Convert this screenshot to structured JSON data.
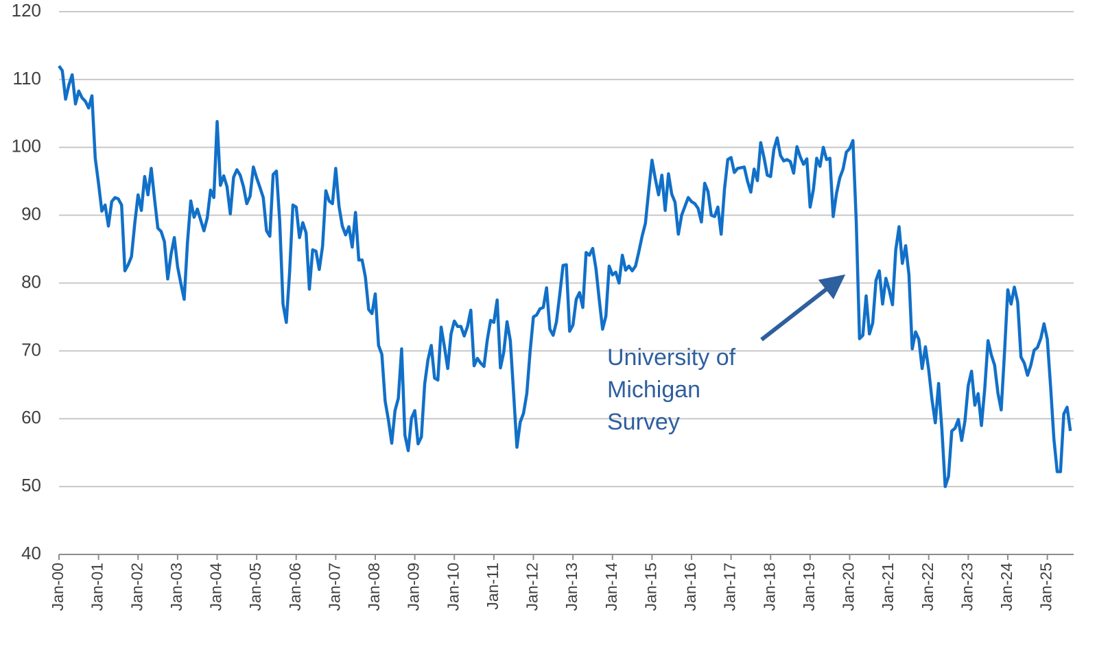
{
  "chart_data": {
    "type": "line",
    "color": "#1170c8",
    "grid": true,
    "ylim": [
      40,
      120
    ],
    "yticks": [
      40,
      50,
      60,
      70,
      80,
      90,
      100,
      110,
      120
    ],
    "annotations": [
      {
        "lines": [
          "University of",
          "Michigan",
          "Survey"
        ]
      }
    ],
    "categories": [
      "Jan-00",
      null,
      null,
      null,
      null,
      null,
      null,
      null,
      null,
      null,
      null,
      null,
      "Jan-01",
      null,
      null,
      null,
      null,
      null,
      null,
      null,
      null,
      null,
      null,
      null,
      "Jan-02",
      null,
      null,
      null,
      null,
      null,
      null,
      null,
      null,
      null,
      null,
      null,
      "Jan-03",
      null,
      null,
      null,
      null,
      null,
      null,
      null,
      null,
      null,
      null,
      null,
      "Jan-04",
      null,
      null,
      null,
      null,
      null,
      null,
      null,
      null,
      null,
      null,
      null,
      "Jan-05",
      null,
      null,
      null,
      null,
      null,
      null,
      null,
      null,
      null,
      null,
      null,
      "Jan-06",
      null,
      null,
      null,
      null,
      null,
      null,
      null,
      null,
      null,
      null,
      null,
      "Jan-07",
      null,
      null,
      null,
      null,
      null,
      null,
      null,
      null,
      null,
      null,
      null,
      "Jan-08",
      null,
      null,
      null,
      null,
      null,
      null,
      null,
      null,
      null,
      null,
      null,
      "Jan-09",
      null,
      null,
      null,
      null,
      null,
      null,
      null,
      null,
      null,
      null,
      null,
      "Jan-10",
      null,
      null,
      null,
      null,
      null,
      null,
      null,
      null,
      null,
      null,
      null,
      "Jan-11",
      null,
      null,
      null,
      null,
      null,
      null,
      null,
      null,
      null,
      null,
      null,
      "Jan-12",
      null,
      null,
      null,
      null,
      null,
      null,
      null,
      null,
      null,
      null,
      null,
      "Jan-13",
      null,
      null,
      null,
      null,
      null,
      null,
      null,
      null,
      null,
      null,
      null,
      "Jan-14",
      null,
      null,
      null,
      null,
      null,
      null,
      null,
      null,
      null,
      null,
      null,
      "Jan-15",
      null,
      null,
      null,
      null,
      null,
      null,
      null,
      null,
      null,
      null,
      null,
      "Jan-16",
      null,
      null,
      null,
      null,
      null,
      null,
      null,
      null,
      null,
      null,
      null,
      "Jan-17",
      null,
      null,
      null,
      null,
      null,
      null,
      null,
      null,
      null,
      null,
      null,
      "Jan-18",
      null,
      null,
      null,
      null,
      null,
      null,
      null,
      null,
      null,
      null,
      null,
      "Jan-19",
      null,
      null,
      null,
      null,
      null,
      null,
      null,
      null,
      null,
      null,
      null,
      "Jan-20",
      null,
      null,
      null,
      null,
      null,
      null,
      null,
      null,
      null,
      null,
      null,
      "Jan-21",
      null,
      null,
      null,
      null,
      null,
      null,
      null,
      null,
      null,
      null,
      null,
      "Jan-22",
      null,
      null,
      null,
      null,
      null,
      null,
      null,
      null,
      null,
      null,
      null,
      "Jan-23",
      null,
      null,
      null,
      null,
      null,
      null,
      null,
      null,
      null,
      null,
      null,
      "Jan-24",
      null,
      null,
      null,
      null,
      null,
      null,
      null,
      null,
      null,
      null,
      null,
      "Jan-25",
      null,
      null,
      null,
      null,
      null,
      null,
      null
    ],
    "values": [
      112.0,
      111.3,
      107.1,
      109.2,
      110.7,
      106.4,
      108.3,
      107.3,
      106.8,
      105.8,
      107.6,
      98.4,
      94.7,
      90.6,
      91.5,
      88.4,
      92.0,
      92.6,
      92.4,
      91.5,
      81.8,
      82.7,
      83.9,
      88.8,
      93.0,
      90.7,
      95.7,
      93.0,
      96.9,
      92.4,
      88.1,
      87.6,
      86.1,
      80.6,
      84.2,
      86.7,
      82.4,
      79.9,
      77.6,
      86.0,
      92.1,
      89.7,
      90.9,
      89.3,
      87.7,
      89.6,
      93.7,
      92.6,
      103.8,
      94.4,
      95.8,
      94.2,
      90.2,
      95.6,
      96.7,
      95.9,
      94.2,
      91.7,
      92.8,
      97.1,
      95.5,
      94.1,
      92.6,
      87.7,
      86.9,
      96.0,
      96.5,
      89.1,
      76.9,
      74.2,
      81.6,
      91.5,
      91.2,
      86.7,
      88.9,
      87.4,
      79.1,
      84.9,
      84.7,
      82.0,
      85.4,
      93.6,
      92.1,
      91.7,
      96.9,
      91.3,
      88.4,
      87.1,
      88.3,
      85.3,
      90.4,
      83.4,
      83.4,
      80.9,
      76.1,
      75.5,
      78.4,
      70.8,
      69.5,
      62.6,
      59.8,
      56.4,
      61.2,
      63.0,
      70.3,
      57.6,
      55.3,
      60.1,
      61.2,
      56.3,
      57.3,
      65.1,
      68.7,
      70.8,
      66.0,
      65.7,
      73.5,
      70.6,
      67.4,
      72.5,
      74.4,
      73.6,
      73.6,
      72.2,
      73.6,
      76.0,
      67.8,
      68.9,
      68.2,
      67.7,
      71.6,
      74.5,
      74.2,
      77.5,
      67.5,
      69.8,
      74.3,
      71.5,
      63.7,
      55.8,
      59.5,
      60.8,
      63.7,
      69.9,
      75.0,
      75.3,
      76.2,
      76.4,
      79.3,
      73.2,
      72.3,
      74.3,
      78.3,
      82.6,
      82.7,
      72.9,
      73.8,
      77.6,
      78.6,
      76.4,
      84.5,
      84.1,
      85.1,
      82.1,
      77.5,
      73.2,
      75.1,
      82.5,
      81.2,
      81.6,
      80.0,
      84.1,
      81.9,
      82.5,
      81.8,
      82.5,
      84.6,
      86.9,
      88.8,
      93.6,
      98.1,
      95.4,
      93.0,
      95.9,
      90.7,
      96.1,
      93.1,
      91.9,
      87.2,
      90.0,
      91.3,
      92.6,
      92.0,
      91.7,
      91.0,
      89.0,
      94.7,
      93.5,
      90.0,
      89.8,
      91.2,
      87.2,
      93.8,
      98.2,
      98.5,
      96.3,
      96.9,
      97.0,
      97.1,
      95.0,
      93.4,
      96.8,
      95.1,
      100.7,
      98.5,
      95.9,
      95.7,
      99.7,
      101.4,
      98.8,
      98.0,
      98.2,
      97.9,
      96.2,
      100.1,
      98.6,
      97.5,
      98.3,
      91.2,
      93.8,
      98.4,
      97.2,
      100.0,
      98.2,
      98.4,
      89.8,
      93.2,
      95.5,
      96.8,
      99.3,
      99.8,
      101.0,
      89.1,
      71.8,
      72.3,
      78.1,
      72.5,
      74.1,
      80.4,
      81.8,
      76.9,
      80.7,
      79.0,
      76.8,
      84.9,
      88.3,
      82.9,
      85.5,
      81.2,
      70.3,
      72.8,
      71.7,
      67.4,
      70.6,
      67.2,
      62.8,
      59.4,
      65.2,
      58.4,
      50.0,
      51.5,
      58.2,
      58.6,
      59.9,
      56.8,
      59.7,
      64.9,
      67.0,
      62.0,
      63.7,
      59.0,
      64.4,
      71.5,
      69.4,
      67.9,
      63.8,
      61.3,
      69.7,
      79.0,
      76.9,
      79.4,
      77.2,
      69.1,
      68.2,
      66.4,
      67.9,
      70.1,
      70.5,
      71.8,
      74.0,
      71.7,
      64.7,
      57.0,
      52.2,
      52.2,
      60.7,
      61.7,
      58.2
    ]
  }
}
